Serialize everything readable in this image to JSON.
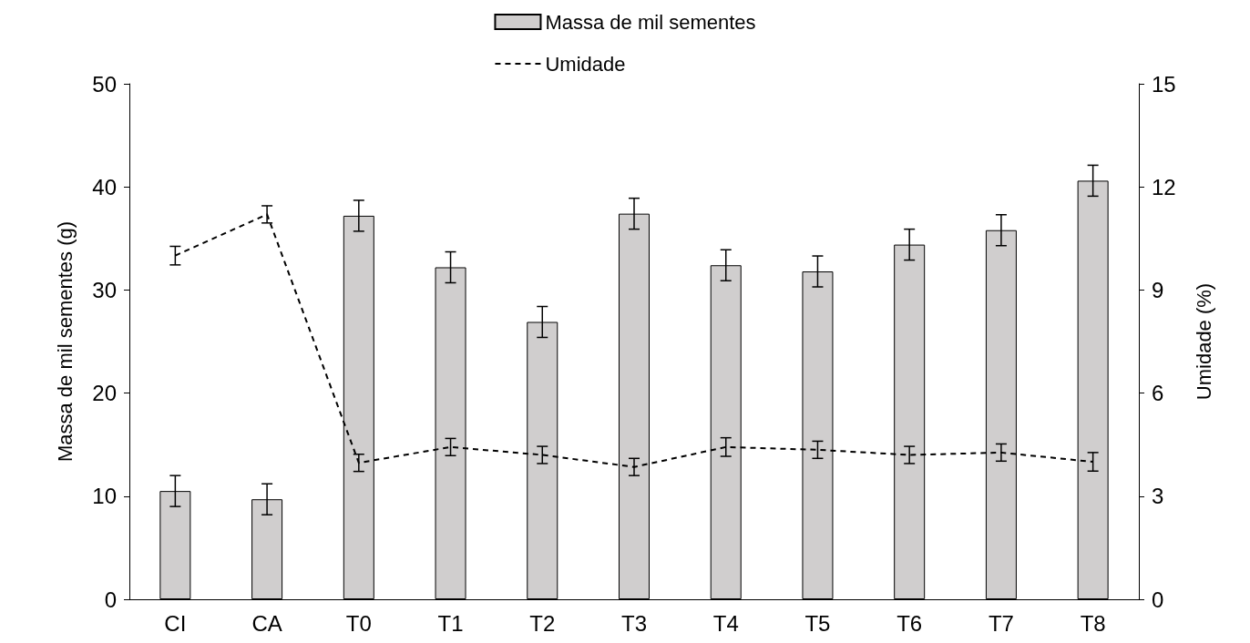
{
  "chart_data": {
    "type": "bar",
    "ylabel": "Massa de mil sementes (g)",
    "y2label": "Umidade (%)",
    "categories": [
      "CI",
      "CA",
      "T0",
      "T1",
      "T2",
      "T3",
      "T4",
      "T5",
      "T6",
      "T7",
      "T8"
    ],
    "series": [
      {
        "name": "Massa de mil sementes",
        "color": "#d0cece",
        "values": [
          10.5,
          9.7,
          37.2,
          32.2,
          26.9,
          37.4,
          32.4,
          31.8,
          34.4,
          35.8,
          40.6
        ],
        "errors": [
          1.5,
          1.5,
          1.5,
          1.5,
          1.5,
          1.5,
          1.5,
          1.5,
          1.5,
          1.5,
          1.5
        ]
      },
      {
        "name": "Umidade",
        "type": "line",
        "axis": "y2",
        "color": "#000000",
        "marker": "none",
        "line_style": "dashed",
        "values": [
          10.0,
          11.2,
          3.97,
          4.43,
          4.2,
          3.85,
          4.43,
          4.35,
          4.2,
          4.27,
          4.0
        ],
        "errors": [
          0.27,
          0.25,
          0.25,
          0.25,
          0.25,
          0.25,
          0.27,
          0.25,
          0.25,
          0.25,
          0.27
        ]
      }
    ],
    "ylim": [
      0,
      50
    ],
    "yticks": [
      0,
      10,
      20,
      30,
      40,
      50
    ],
    "y2lim": [
      0,
      15
    ],
    "y2ticks": [
      0,
      3,
      6,
      9,
      12,
      15
    ],
    "legend": "top"
  }
}
